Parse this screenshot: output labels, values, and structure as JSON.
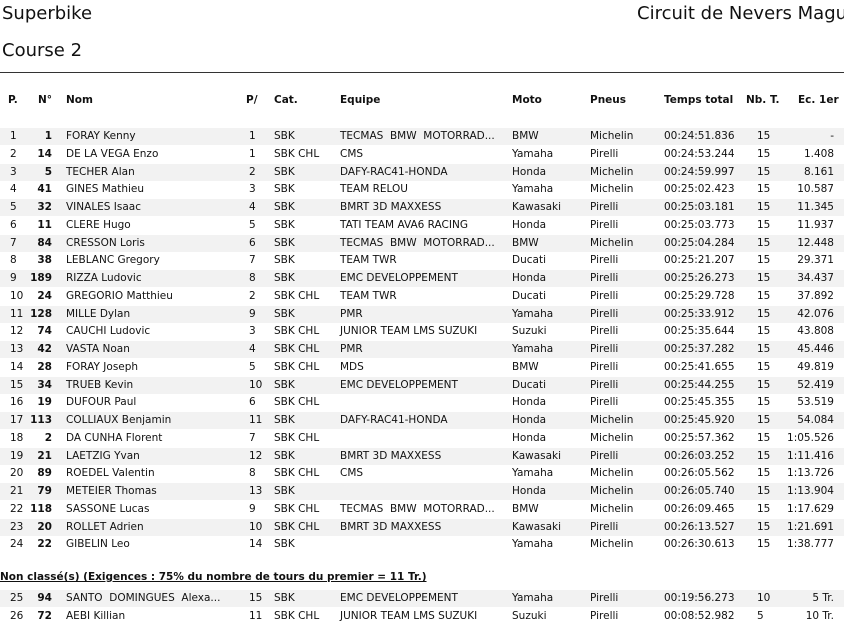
{
  "header": {
    "title": "Superbike",
    "subtitle": "Course 2",
    "circuit": "Circuit de Nevers Magu"
  },
  "table": {
    "columns": [
      "P.",
      "N°",
      "Nom",
      "P/",
      "Cat.",
      "Equipe",
      "Moto",
      "Pneus",
      "Temps total",
      "Nb. T.",
      "Ec. 1er"
    ],
    "rows": [
      [
        "1",
        "1",
        "FORAY Kenny",
        "1",
        "SBK",
        "TECMAS  BMW  MOTORRAD...",
        "BMW",
        "Michelin",
        "00:24:51.836",
        "15",
        "-"
      ],
      [
        "2",
        "14",
        "DE LA VEGA Enzo",
        "1",
        "SBK CHL",
        "CMS",
        "Yamaha",
        "Pirelli",
        "00:24:53.244",
        "15",
        "1.408"
      ],
      [
        "3",
        "5",
        "TECHER Alan",
        "2",
        "SBK",
        "DAFY-RAC41-HONDA",
        "Honda",
        "Michelin",
        "00:24:59.997",
        "15",
        "8.161"
      ],
      [
        "4",
        "41",
        "GINES Mathieu",
        "3",
        "SBK",
        "TEAM RELOU",
        "Yamaha",
        "Michelin",
        "00:25:02.423",
        "15",
        "10.587"
      ],
      [
        "5",
        "32",
        "VINALES Isaac",
        "4",
        "SBK",
        "BMRT 3D MAXXESS",
        "Kawasaki",
        "Pirelli",
        "00:25:03.181",
        "15",
        "11.345"
      ],
      [
        "6",
        "11",
        "CLERE Hugo",
        "5",
        "SBK",
        "TATI TEAM AVA6 RACING",
        "Honda",
        "Pirelli",
        "00:25:03.773",
        "15",
        "11.937"
      ],
      [
        "7",
        "84",
        "CRESSON Loris",
        "6",
        "SBK",
        "TECMAS  BMW  MOTORRAD...",
        "BMW",
        "Michelin",
        "00:25:04.284",
        "15",
        "12.448"
      ],
      [
        "8",
        "38",
        "LEBLANC Gregory",
        "7",
        "SBK",
        "TEAM TWR",
        "Ducati",
        "Pirelli",
        "00:25:21.207",
        "15",
        "29.371"
      ],
      [
        "9",
        "189",
        "RIZZA Ludovic",
        "8",
        "SBK",
        "EMC DEVELOPPEMENT",
        "Honda",
        "Pirelli",
        "00:25:26.273",
        "15",
        "34.437"
      ],
      [
        "10",
        "24",
        "GREGORIO Matthieu",
        "2",
        "SBK CHL",
        "TEAM TWR",
        "Ducati",
        "Pirelli",
        "00:25:29.728",
        "15",
        "37.892"
      ],
      [
        "11",
        "128",
        "MILLE Dylan",
        "9",
        "SBK",
        "PMR",
        "Yamaha",
        "Pirelli",
        "00:25:33.912",
        "15",
        "42.076"
      ],
      [
        "12",
        "74",
        "CAUCHI Ludovic",
        "3",
        "SBK CHL",
        "JUNIOR TEAM LMS SUZUKI",
        "Suzuki",
        "Pirelli",
        "00:25:35.644",
        "15",
        "43.808"
      ],
      [
        "13",
        "42",
        "VASTA Noan",
        "4",
        "SBK CHL",
        "PMR",
        "Yamaha",
        "Pirelli",
        "00:25:37.282",
        "15",
        "45.446"
      ],
      [
        "14",
        "28",
        "FORAY Joseph",
        "5",
        "SBK CHL",
        "MDS",
        "BMW",
        "Pirelli",
        "00:25:41.655",
        "15",
        "49.819"
      ],
      [
        "15",
        "34",
        "TRUEB Kevin",
        "10",
        "SBK",
        "EMC DEVELOPPEMENT",
        "Ducati",
        "Pirelli",
        "00:25:44.255",
        "15",
        "52.419"
      ],
      [
        "16",
        "19",
        "DUFOUR Paul",
        "6",
        "SBK CHL",
        null,
        "Honda",
        "Pirelli",
        "00:25:45.355",
        "15",
        "53.519"
      ],
      [
        "17",
        "113",
        "COLLIAUX Benjamin",
        "11",
        "SBK",
        "DAFY-RAC41-HONDA",
        "Honda",
        "Michelin",
        "00:25:45.920",
        "15",
        "54.084"
      ],
      [
        "18",
        "2",
        "DA CUNHA Florent",
        "7",
        "SBK CHL",
        null,
        "Honda",
        "Michelin",
        "00:25:57.362",
        "15",
        "1:05.526"
      ],
      [
        "19",
        "21",
        "LAETZIG Yvan",
        "12",
        "SBK",
        "BMRT 3D MAXXESS",
        "Kawasaki",
        "Pirelli",
        "00:26:03.252",
        "15",
        "1:11.416"
      ],
      [
        "20",
        "89",
        "ROEDEL Valentin",
        "8",
        "SBK CHL",
        "CMS",
        "Yamaha",
        "Michelin",
        "00:26:05.562",
        "15",
        "1:13.726"
      ],
      [
        "21",
        "79",
        "METEIER Thomas",
        "13",
        "SBK",
        null,
        "Honda",
        "Michelin",
        "00:26:05.740",
        "15",
        "1:13.904"
      ],
      [
        "22",
        "118",
        "SASSONE Lucas",
        "9",
        "SBK CHL",
        "TECMAS  BMW  MOTORRAD...",
        "BMW",
        "Michelin",
        "00:26:09.465",
        "15",
        "1:17.629"
      ],
      [
        "23",
        "20",
        "ROLLET Adrien",
        "10",
        "SBK CHL",
        "BMRT 3D MAXXESS",
        "Kawasaki",
        "Pirelli",
        "00:26:13.527",
        "15",
        "1:21.691"
      ],
      [
        "24",
        "22",
        "GIBELIN Leo",
        "14",
        "SBK",
        null,
        "Yamaha",
        "Michelin",
        "00:26:30.613",
        "15",
        "1:38.777"
      ]
    ]
  },
  "non_classe": {
    "note": "Non classé(s) (Exigences : 75% du nombre de tours du premier = 11 Tr.)",
    "rows": [
      [
        "25",
        "94",
        "SANTO  DOMINGUES  Alexa...",
        "15",
        "SBK",
        "EMC DEVELOPPEMENT",
        "Yamaha",
        "Pirelli",
        "00:19:56.273",
        "10",
        "5 Tr."
      ],
      [
        "26",
        "72",
        "AEBI Killian",
        "11",
        "SBK CHL",
        "JUNIOR TEAM LMS SUZUKI",
        "Suzuki",
        "Pirelli",
        "00:08:52.982",
        "5",
        "10 Tr."
      ]
    ]
  }
}
